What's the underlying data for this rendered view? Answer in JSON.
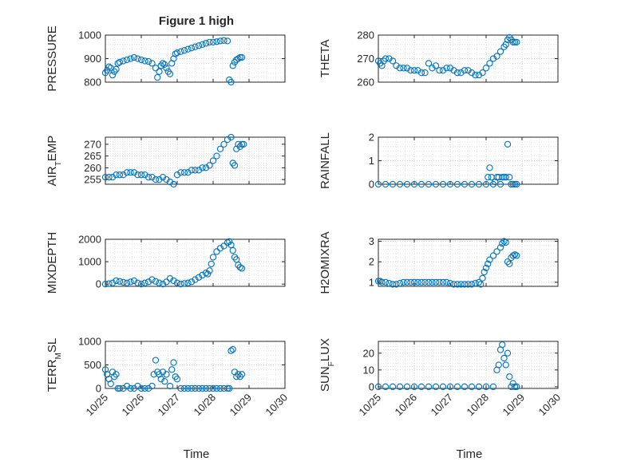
{
  "figure": {
    "title": "Figure 1 high",
    "x_label": "Time",
    "x_ticks": [
      "10/25",
      "10/26",
      "10/27",
      "10/28",
      "10/29",
      "10/30"
    ],
    "marker_color": "#0072BD"
  },
  "chart_data": [
    {
      "type": "scatter",
      "ylabel": "PRESSURE",
      "ylim": [
        800,
        1000
      ],
      "yticks": [
        800,
        900,
        1000
      ],
      "xlim": [
        25,
        30
      ],
      "x": [
        25.0,
        25.05,
        25.1,
        25.15,
        25.2,
        25.25,
        25.3,
        25.35,
        25.4,
        25.5,
        25.6,
        25.7,
        25.8,
        25.9,
        26.0,
        26.1,
        26.2,
        26.3,
        26.4,
        26.45,
        26.5,
        26.55,
        26.6,
        26.65,
        26.7,
        26.75,
        26.8,
        26.85,
        26.9,
        26.95,
        27.0,
        27.1,
        27.2,
        27.3,
        27.4,
        27.5,
        27.6,
        27.7,
        27.8,
        27.9,
        28.0,
        28.1,
        28.2,
        28.3,
        28.4,
        28.45,
        28.5,
        28.55,
        28.6,
        28.65,
        28.7,
        28.75,
        28.8
      ],
      "y": [
        840,
        850,
        865,
        860,
        830,
        845,
        855,
        880,
        885,
        890,
        895,
        900,
        905,
        900,
        895,
        890,
        888,
        880,
        860,
        820,
        845,
        870,
        880,
        875,
        860,
        845,
        835,
        880,
        900,
        920,
        925,
        930,
        935,
        940,
        945,
        950,
        955,
        960,
        965,
        970,
        970,
        972,
        975,
        977,
        975,
        810,
        800,
        870,
        885,
        895,
        900,
        905,
        905
      ]
    },
    {
      "type": "scatter",
      "ylabel": "THETA",
      "ylim": [
        260,
        280
      ],
      "yticks": [
        260,
        270,
        280
      ],
      "xlim": [
        25,
        30
      ],
      "x": [
        25.0,
        25.05,
        25.1,
        25.15,
        25.2,
        25.3,
        25.4,
        25.5,
        25.6,
        25.7,
        25.8,
        25.9,
        26.0,
        26.1,
        26.2,
        26.3,
        26.4,
        26.5,
        26.6,
        26.7,
        26.8,
        26.9,
        27.0,
        27.1,
        27.2,
        27.3,
        27.4,
        27.5,
        27.6,
        27.7,
        27.8,
        27.9,
        28.0,
        28.1,
        28.2,
        28.3,
        28.4,
        28.5,
        28.55,
        28.6,
        28.65,
        28.7,
        28.75,
        28.8,
        28.85
      ],
      "y": [
        269,
        268,
        267,
        269,
        270,
        270,
        269,
        267,
        266,
        266,
        266,
        265,
        265,
        265,
        264,
        264,
        268,
        266,
        267,
        265,
        265,
        266,
        266,
        265,
        264,
        264,
        265,
        265,
        264,
        263,
        263,
        264,
        266,
        268,
        270,
        271,
        273,
        275,
        276,
        278,
        279,
        278,
        277,
        277,
        277
      ]
    },
    {
      "type": "scatter",
      "ylabel": "AIR_TEMP",
      "ylim": [
        253,
        273
      ],
      "yticks": [
        255,
        260,
        265,
        270
      ],
      "xlim": [
        25,
        30
      ],
      "x": [
        25.0,
        25.1,
        25.2,
        25.3,
        25.4,
        25.5,
        25.6,
        25.7,
        25.8,
        25.9,
        26.0,
        26.1,
        26.2,
        26.3,
        26.4,
        26.5,
        26.6,
        26.7,
        26.8,
        26.9,
        27.0,
        27.1,
        27.2,
        27.3,
        27.4,
        27.5,
        27.6,
        27.7,
        27.8,
        27.9,
        28.0,
        28.1,
        28.2,
        28.3,
        28.4,
        28.5,
        28.55,
        28.6,
        28.65,
        28.7,
        28.75,
        28.8,
        28.85
      ],
      "y": [
        256,
        256,
        256,
        257,
        257,
        257,
        258,
        258,
        258,
        257,
        257,
        257,
        256,
        256,
        255,
        255,
        256,
        255,
        254,
        253,
        257,
        258,
        258,
        258,
        259,
        259,
        259,
        260,
        260,
        261,
        263,
        265,
        268,
        270,
        272,
        273,
        262,
        261,
        268,
        270,
        269,
        270,
        270
      ]
    },
    {
      "type": "scatter",
      "ylabel": "RAINFALL",
      "ylim": [
        0,
        2
      ],
      "yticks": [
        0,
        1,
        2
      ],
      "xlim": [
        25,
        30
      ],
      "x": [
        25.0,
        25.2,
        25.4,
        25.6,
        25.8,
        26.0,
        26.2,
        26.4,
        26.6,
        26.8,
        27.0,
        27.2,
        27.4,
        27.6,
        27.8,
        28.0,
        28.05,
        28.1,
        28.15,
        28.2,
        28.25,
        28.3,
        28.35,
        28.4,
        28.45,
        28.5,
        28.55,
        28.6,
        28.65,
        28.7,
        28.75,
        28.8,
        28.85
      ],
      "y": [
        0,
        0,
        0,
        0,
        0,
        0,
        0,
        0,
        0,
        0,
        0,
        0,
        0,
        0,
        0,
        0,
        0.3,
        0.7,
        0.3,
        0,
        0.1,
        0.3,
        0.3,
        0,
        0.3,
        0.3,
        0.3,
        1.7,
        0.3,
        0,
        0,
        0,
        0
      ]
    },
    {
      "type": "scatter",
      "ylabel": "MIXDEPTH",
      "ylim": [
        -100,
        2000
      ],
      "yticks": [
        0,
        1000,
        2000
      ],
      "xlim": [
        25,
        30
      ],
      "x": [
        25.0,
        25.1,
        25.2,
        25.3,
        25.4,
        25.5,
        25.6,
        25.7,
        25.8,
        25.9,
        26.0,
        26.1,
        26.2,
        26.3,
        26.4,
        26.5,
        26.6,
        26.7,
        26.8,
        26.9,
        27.0,
        27.1,
        27.2,
        27.3,
        27.4,
        27.5,
        27.6,
        27.7,
        27.8,
        27.85,
        27.9,
        27.95,
        28.0,
        28.1,
        28.2,
        28.3,
        28.4,
        28.45,
        28.5,
        28.55,
        28.6,
        28.65,
        28.7,
        28.75,
        28.8
      ],
      "y": [
        0,
        20,
        50,
        150,
        120,
        80,
        50,
        100,
        150,
        50,
        0,
        50,
        100,
        200,
        120,
        50,
        0,
        100,
        250,
        150,
        50,
        0,
        30,
        50,
        100,
        200,
        300,
        400,
        500,
        450,
        600,
        900,
        1200,
        1450,
        1600,
        1700,
        1850,
        1900,
        1750,
        1500,
        1200,
        1100,
        850,
        750,
        700
      ]
    },
    {
      "type": "scatter",
      "ylabel": "H2OMIXRA",
      "ylim": [
        0.8,
        3.1
      ],
      "yticks": [
        1,
        2,
        3
      ],
      "xlim": [
        25,
        30
      ],
      "x": [
        25.0,
        25.05,
        25.1,
        25.2,
        25.3,
        25.4,
        25.5,
        25.6,
        25.7,
        25.8,
        25.9,
        26.0,
        26.1,
        26.2,
        26.3,
        26.4,
        26.5,
        26.6,
        26.7,
        26.8,
        26.9,
        27.0,
        27.1,
        27.2,
        27.3,
        27.4,
        27.5,
        27.6,
        27.7,
        27.8,
        27.85,
        27.9,
        27.95,
        28.0,
        28.05,
        28.1,
        28.2,
        28.3,
        28.4,
        28.45,
        28.5,
        28.55,
        28.6,
        28.65,
        28.7,
        28.75,
        28.8,
        28.85
      ],
      "y": [
        1.05,
        1.05,
        1.0,
        1.0,
        0.95,
        0.9,
        0.9,
        0.95,
        1.0,
        1.0,
        1.0,
        1.0,
        1.0,
        1.0,
        1.0,
        1.0,
        1.0,
        1.0,
        1.0,
        1.0,
        1.0,
        0.95,
        0.9,
        0.9,
        0.9,
        0.9,
        0.9,
        0.9,
        0.95,
        1.0,
        0.9,
        1.2,
        1.5,
        1.7,
        1.9,
        2.1,
        2.3,
        2.5,
        2.7,
        2.9,
        3.0,
        2.95,
        2.0,
        1.9,
        2.2,
        2.3,
        2.35,
        2.3
      ]
    },
    {
      "type": "scatter",
      "ylabel": "TERR_MSL",
      "ylim": [
        0,
        1000
      ],
      "yticks": [
        0,
        500,
        1000
      ],
      "xlim": [
        25,
        30
      ],
      "x": [
        25.0,
        25.05,
        25.1,
        25.15,
        25.2,
        25.25,
        25.3,
        25.35,
        25.4,
        25.5,
        25.6,
        25.7,
        25.8,
        25.9,
        26.0,
        26.1,
        26.2,
        26.3,
        26.35,
        26.4,
        26.45,
        26.5,
        26.55,
        26.6,
        26.65,
        26.7,
        26.8,
        26.85,
        26.9,
        26.95,
        27.0,
        27.1,
        27.2,
        27.3,
        27.4,
        27.5,
        27.6,
        27.7,
        27.8,
        27.9,
        28.0,
        28.1,
        28.2,
        28.3,
        28.4,
        28.45,
        28.5,
        28.55,
        28.6,
        28.65,
        28.7,
        28.75,
        28.8
      ],
      "y": [
        400,
        300,
        200,
        100,
        350,
        250,
        300,
        0,
        0,
        0,
        50,
        0,
        0,
        50,
        0,
        0,
        0,
        50,
        300,
        600,
        350,
        300,
        200,
        350,
        150,
        300,
        50,
        400,
        550,
        250,
        200,
        0,
        0,
        0,
        0,
        0,
        0,
        0,
        0,
        0,
        0,
        0,
        0,
        0,
        0,
        0,
        800,
        830,
        350,
        250,
        300,
        250,
        300
      ]
    },
    {
      "type": "scatter",
      "ylabel": "SUN_FLUX",
      "ylim": [
        -1,
        27
      ],
      "yticks": [
        0,
        10,
        20
      ],
      "xlim": [
        25,
        30
      ],
      "x": [
        25.0,
        25.2,
        25.4,
        25.6,
        25.8,
        26.0,
        26.2,
        26.4,
        26.6,
        26.8,
        27.0,
        27.2,
        27.4,
        27.6,
        27.8,
        28.0,
        28.2,
        28.3,
        28.35,
        28.4,
        28.45,
        28.5,
        28.55,
        28.6,
        28.65,
        28.7,
        28.75,
        28.8,
        28.85
      ],
      "y": [
        0,
        0,
        0,
        0,
        0,
        0,
        0,
        0,
        0,
        0,
        0,
        0,
        0,
        0,
        0,
        0,
        0,
        10,
        13,
        22,
        25,
        17,
        13,
        20,
        6,
        0,
        2,
        0,
        0
      ]
    }
  ]
}
